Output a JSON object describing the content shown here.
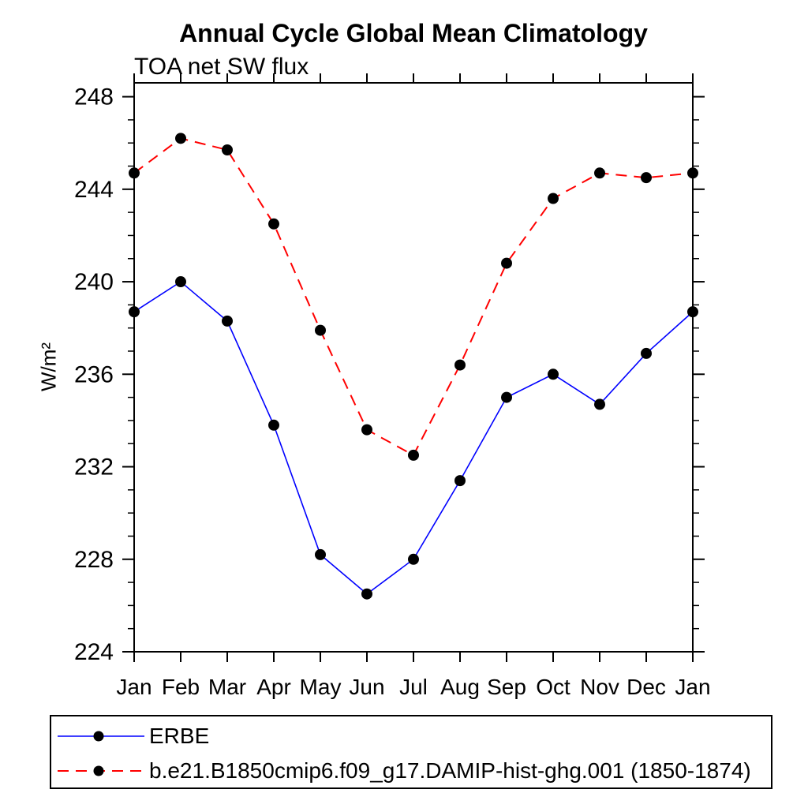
{
  "page": {
    "title": "Annual Cycle Global Mean Climatology",
    "subtitle": "TOA net SW flux",
    "ylabel": "W/m²"
  },
  "chart_data": {
    "type": "line",
    "title": "Annual Cycle Global Mean Climatology",
    "subtitle": "TOA net SW flux",
    "xlabel": "",
    "ylabel": "W/m²",
    "categories": [
      "Jan",
      "Feb",
      "Mar",
      "Apr",
      "May",
      "Jun",
      "Jul",
      "Aug",
      "Sep",
      "Oct",
      "Nov",
      "Dec",
      "Jan"
    ],
    "ylim": [
      224,
      248.6
    ],
    "ytick_major": [
      224,
      228,
      232,
      236,
      240,
      244,
      248
    ],
    "ytick_minor_step": 1,
    "grid": false,
    "legend_position": "bottom-left-box",
    "axis_color": "#000000",
    "series": [
      {
        "name": "ERBE",
        "color": "#0000ff",
        "line_style": "solid",
        "marker": "circle",
        "marker_color": "#000000",
        "values": [
          238.7,
          240.0,
          238.3,
          233.8,
          228.2,
          226.5,
          228.0,
          231.4,
          235.0,
          236.0,
          234.7,
          236.9,
          238.7
        ]
      },
      {
        "name": "b.e21.B1850cmip6.f09_g17.DAMIP-hist-ghg.001 (1850-1874)",
        "color": "#ff0000",
        "line_style": "dashed",
        "marker": "circle",
        "marker_color": "#000000",
        "values": [
          244.7,
          246.2,
          245.7,
          242.5,
          237.9,
          233.6,
          232.5,
          236.4,
          240.8,
          243.6,
          244.7,
          244.5,
          244.7
        ]
      }
    ]
  }
}
